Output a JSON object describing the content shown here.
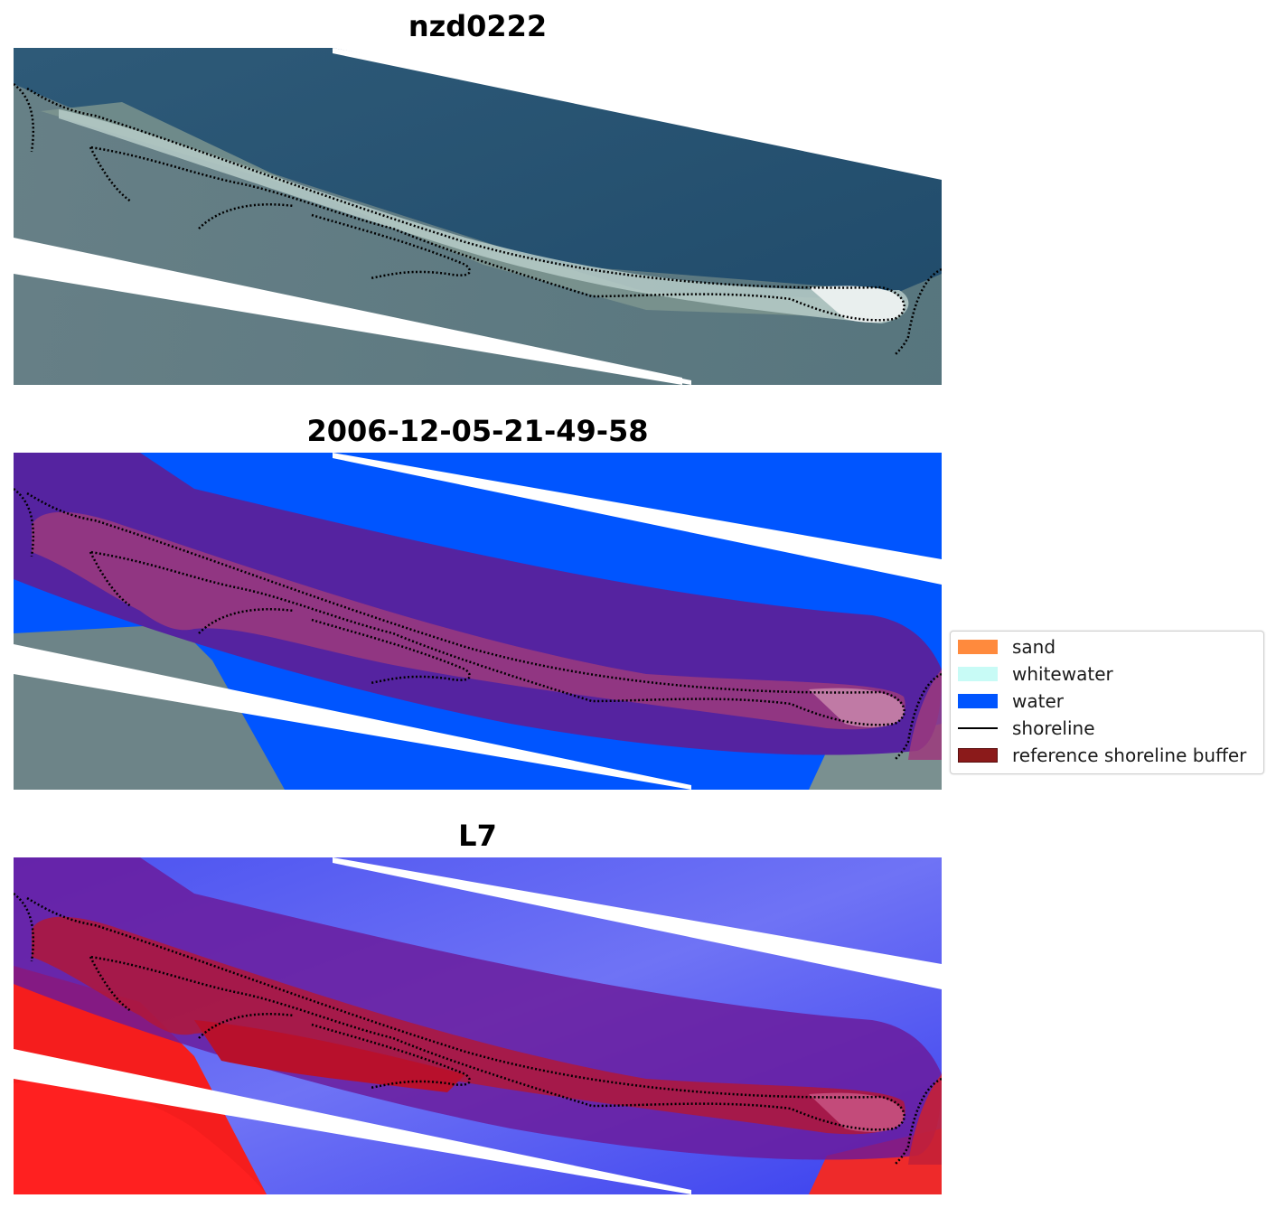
{
  "panels": [
    {
      "title": "nzd0222"
    },
    {
      "title": "2006-12-05-21-49-58"
    },
    {
      "title": "L7"
    }
  ],
  "legend": {
    "items": [
      {
        "label": "sand",
        "color": "#ff8a3d"
      },
      {
        "label": "whitewater",
        "color": "#c8fbf6"
      },
      {
        "label": "water",
        "color": "#0055ff"
      },
      {
        "label": "shoreline",
        "color": "#000000"
      },
      {
        "label": "reference shoreline buffer",
        "color": "#8b1a1a"
      }
    ]
  }
}
